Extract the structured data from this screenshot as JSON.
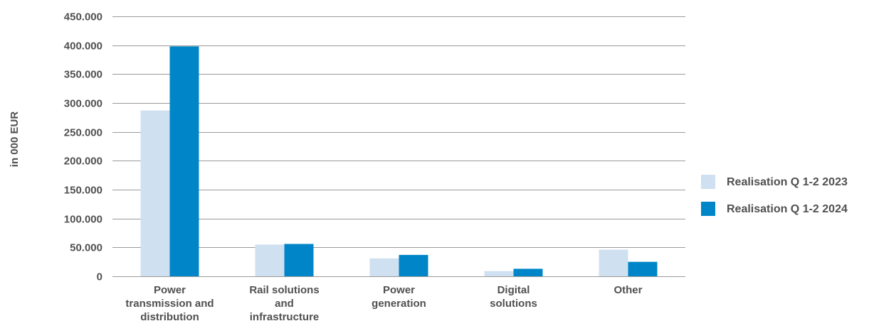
{
  "chart_data": {
    "type": "bar",
    "categories": [
      [
        "Power",
        "transmission and",
        "distribution"
      ],
      [
        "Rail solutions",
        "and",
        "infrastructure"
      ],
      [
        "Power",
        "generation"
      ],
      [
        "Digital",
        "solutions"
      ],
      [
        "Other"
      ]
    ],
    "series": [
      {
        "name": "Realisation Q 1-2 2023",
        "color": "#cfe0f1",
        "values": [
          287000,
          55000,
          31000,
          9000,
          46000
        ]
      },
      {
        "name": "Realisation Q 1-2 2024",
        "color": "#0086c8",
        "values": [
          398000,
          56000,
          37000,
          13000,
          25000
        ]
      }
    ],
    "ylabel": "in 000 EUR",
    "ylim": [
      0,
      450000
    ],
    "yticks": [
      {
        "value": 0,
        "label": "0"
      },
      {
        "value": 50000,
        "label": "50.000"
      },
      {
        "value": 100000,
        "label": "100.000"
      },
      {
        "value": 150000,
        "label": "150.000"
      },
      {
        "value": 200000,
        "label": "200.000"
      },
      {
        "value": 250000,
        "label": "250.000"
      },
      {
        "value": 300000,
        "label": "300.000"
      },
      {
        "value": 350000,
        "label": "350.000"
      },
      {
        "value": 400000,
        "label": "400.000"
      },
      {
        "value": 450000,
        "label": "450.000"
      }
    ],
    "grid": true,
    "legend_position": "right"
  }
}
